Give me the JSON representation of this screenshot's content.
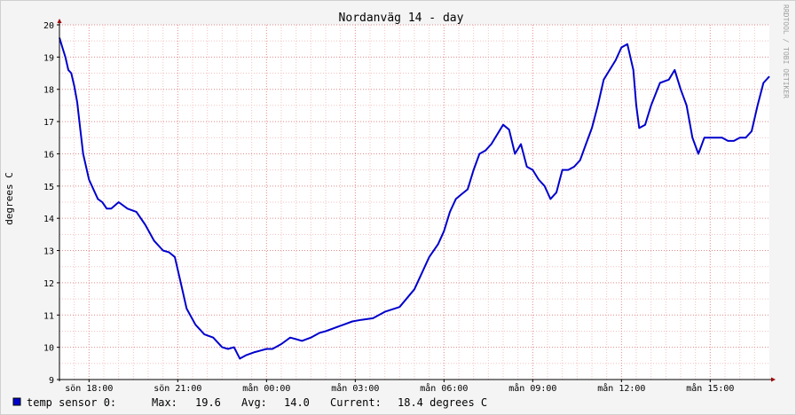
{
  "chart_data": {
    "type": "line",
    "title": "Nordanväg 14 - day",
    "ylabel": "degrees C",
    "ylim": [
      9,
      20
    ],
    "y_ticks": [
      9,
      10,
      11,
      12,
      13,
      14,
      15,
      16,
      17,
      18,
      19,
      20
    ],
    "x_tick_labels": [
      "sön 18:00",
      "sön 21:00",
      "mån 00:00",
      "mån 03:00",
      "mån 06:00",
      "mån 09:00",
      "mån 12:00",
      "mån 15:00"
    ],
    "xlim_hours": [
      -1.0,
      23.0
    ],
    "grid": true,
    "line_color": "#0000cc",
    "series": [
      {
        "name": "temp sensor 0:",
        "x": [
          -1.0,
          -0.9,
          -0.8,
          -0.7,
          -0.6,
          -0.5,
          -0.4,
          -0.3,
          -0.2,
          -0.1,
          0.0,
          0.15,
          0.3,
          0.45,
          0.6,
          0.75,
          1.0,
          1.3,
          1.6,
          1.9,
          2.2,
          2.5,
          2.7,
          2.9,
          3.1,
          3.3,
          3.6,
          3.9,
          4.2,
          4.5,
          4.7,
          4.9,
          5.1,
          5.3,
          5.6,
          5.8,
          6.0,
          6.2,
          6.5,
          6.8,
          7.0,
          7.2,
          7.5,
          7.8,
          8.0,
          8.3,
          8.6,
          8.9,
          9.2,
          9.6,
          10.0,
          10.5,
          11.0,
          11.5,
          11.8,
          12.0,
          12.2,
          12.4,
          12.6,
          12.8,
          13.0,
          13.2,
          13.4,
          13.6,
          13.8,
          14.0,
          14.2,
          14.4,
          14.6,
          14.8,
          15.0,
          15.2,
          15.4,
          15.6,
          15.8,
          16.0,
          16.2,
          16.4,
          16.6,
          16.8,
          17.0,
          17.2,
          17.4,
          17.6,
          17.8,
          18.0,
          18.2,
          18.4,
          18.5,
          18.6,
          18.8,
          19.0,
          19.3,
          19.6,
          19.8,
          20.0,
          20.2,
          20.4,
          20.6,
          20.8,
          21.0,
          21.2,
          21.4,
          21.6,
          21.8,
          22.0,
          22.2,
          22.4,
          22.6,
          22.8,
          23.0
        ],
        "values": [
          19.6,
          19.3,
          19.0,
          18.6,
          18.5,
          18.1,
          17.6,
          16.8,
          16.0,
          15.6,
          15.2,
          14.9,
          14.6,
          14.5,
          14.3,
          14.3,
          14.5,
          14.3,
          14.2,
          13.8,
          13.3,
          13.0,
          12.95,
          12.8,
          12.0,
          11.2,
          10.7,
          10.4,
          10.3,
          10.0,
          9.95,
          10.0,
          9.65,
          9.75,
          9.85,
          9.9,
          9.95,
          9.95,
          10.1,
          10.3,
          10.25,
          10.2,
          10.3,
          10.45,
          10.5,
          10.6,
          10.7,
          10.8,
          10.85,
          10.9,
          11.1,
          11.25,
          11.8,
          12.8,
          13.2,
          13.6,
          14.2,
          14.6,
          14.75,
          14.9,
          15.5,
          16.0,
          16.1,
          16.3,
          16.6,
          16.9,
          16.75,
          16.0,
          16.3,
          15.6,
          15.5,
          15.2,
          15.0,
          14.6,
          14.8,
          15.5,
          15.5,
          15.6,
          15.8,
          16.3,
          16.8,
          17.5,
          18.3,
          18.6,
          18.9,
          19.3,
          19.4,
          18.6,
          17.5,
          16.8,
          16.9,
          17.5,
          18.2,
          18.3,
          18.6,
          18.0,
          17.5,
          16.5,
          16.0,
          16.5,
          16.5,
          16.5,
          16.5,
          16.4,
          16.4,
          16.5,
          16.5,
          16.7,
          17.5,
          18.2,
          18.4
        ]
      }
    ],
    "legend": {
      "label": "temp sensor 0:",
      "max_label": "Max:",
      "max_value": "19.6",
      "avg_label": "Avg:",
      "avg_value": "14.0",
      "current_label": "Current:",
      "current_value": "18.4 degrees C"
    },
    "watermark": "RRDTOOL / TOBI OETIKER"
  }
}
